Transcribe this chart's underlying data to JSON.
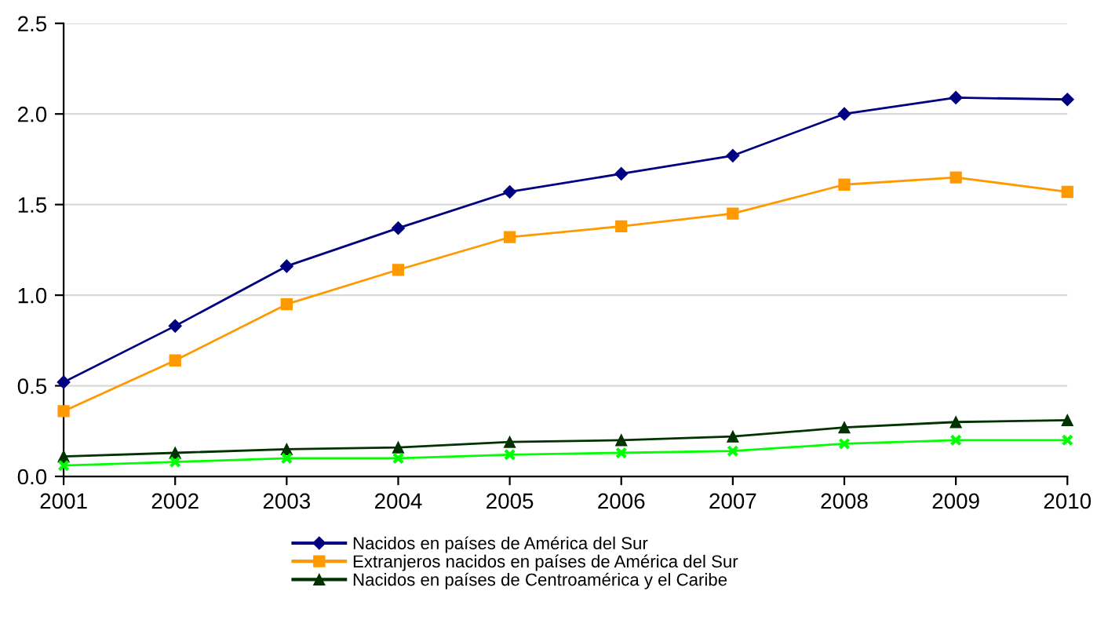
{
  "chart_data": {
    "type": "line",
    "categories": [
      "2001",
      "2002",
      "2003",
      "2004",
      "2005",
      "2006",
      "2007",
      "2008",
      "2009",
      "2010"
    ],
    "ylim": [
      0,
      2.5
    ],
    "yticks": [
      {
        "value": 0,
        "label": "0.0"
      },
      {
        "value": 0.5,
        "label": "0.5"
      },
      {
        "value": 1,
        "label": "1.0"
      },
      {
        "value": 1.5,
        "label": "1.5"
      },
      {
        "value": 2,
        "label": "2.0"
      },
      {
        "value": 2.5,
        "label": "2.5"
      }
    ],
    "grid": "y",
    "legend": "bottom",
    "series": [
      {
        "name": "Nacidos en países de América del Sur",
        "color": "#000080",
        "marker": "diamond",
        "values": [
          0.52,
          0.83,
          1.16,
          1.37,
          1.57,
          1.67,
          1.77,
          2.0,
          2.09,
          2.08
        ]
      },
      {
        "name": "Extranjeros nacidos en países de América del Sur",
        "color": "#ff9900",
        "marker": "square",
        "values": [
          0.36,
          0.64,
          0.95,
          1.14,
          1.32,
          1.38,
          1.45,
          1.61,
          1.65,
          1.57
        ]
      },
      {
        "name": "Nacidos en países de Centroamérica y el Caribe",
        "color": "#003300",
        "marker": "triangle",
        "values": [
          0.11,
          0.13,
          0.15,
          0.16,
          0.19,
          0.2,
          0.22,
          0.27,
          0.3,
          0.31
        ]
      },
      {
        "color": "#00ff00",
        "marker": "cross",
        "values": [
          0.06,
          0.08,
          0.1,
          0.1,
          0.12,
          0.13,
          0.14,
          0.18,
          0.2,
          0.2
        ]
      }
    ]
  }
}
